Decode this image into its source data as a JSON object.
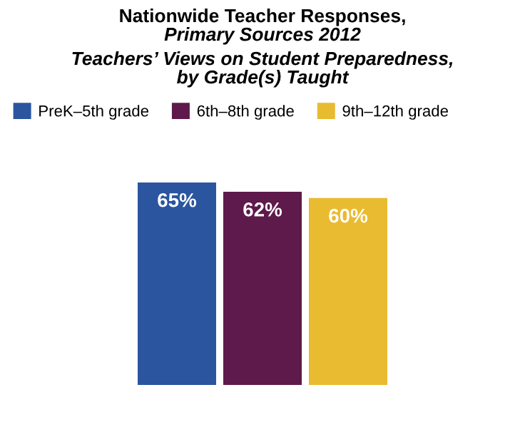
{
  "chart_data": {
    "type": "bar",
    "title": "Nationwide Teacher Responses,\nPrimary Sources 2012",
    "subtitle": "Teachers’ Views on Student Preparedness,\nby Grade(s) Taught",
    "categories": [
      null
    ],
    "series": [
      {
        "name": "PreK–5th grade",
        "color": "#2b559f",
        "values": [
          65
        ],
        "value_labels": [
          "65%"
        ]
      },
      {
        "name": "6th–8th grade",
        "color": "#5e1a4b",
        "values": [
          62
        ],
        "value_labels": [
          "62%"
        ]
      },
      {
        "name": "9th–12th grade",
        "color": "#e9bb30",
        "values": [
          60
        ],
        "value_labels": [
          "60%"
        ]
      }
    ],
    "legend": "top"
  }
}
